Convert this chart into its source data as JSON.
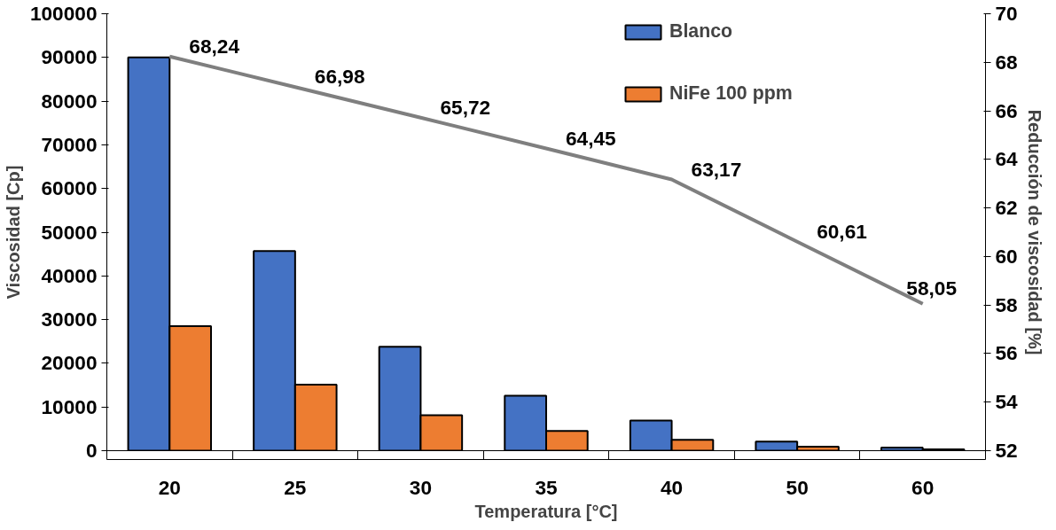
{
  "chart_data": {
    "type": "bar",
    "xlabel": "Temperatura [°C]",
    "ylabel": "Viscosidad [Cp]",
    "y2label": "Reducción de viscosidad [%]",
    "categories": [
      "20",
      "25",
      "30",
      "35",
      "40",
      "50",
      "60"
    ],
    "series": [
      {
        "name": "Blanco",
        "color": "#4472c4",
        "values": [
          90000,
          45700,
          23800,
          12600,
          6900,
          2100,
          700
        ]
      },
      {
        "name": "NiFe 100 ppm",
        "color": "#ed7d31",
        "values": [
          28500,
          15100,
          8100,
          4500,
          2500,
          900,
          300
        ]
      },
      {
        "type": "line",
        "axis": "y2",
        "color": "#7f7f7f",
        "values": [
          68.24,
          66.98,
          65.72,
          64.45,
          63.17,
          60.61,
          58.05
        ],
        "value_labels": [
          "68,24",
          "66,98",
          "65,72",
          "64,45",
          "63,17",
          "60,61",
          "58,05"
        ]
      }
    ],
    "ylim": [
      0,
      100000
    ],
    "yticks": [
      0,
      10000,
      20000,
      30000,
      40000,
      50000,
      60000,
      70000,
      80000,
      90000,
      100000
    ],
    "y2lim": [
      52,
      70
    ],
    "y2ticks": [
      52,
      54,
      56,
      58,
      60,
      62,
      64,
      66,
      68,
      70
    ],
    "grid": false,
    "legend": "top right",
    "marker": "none"
  }
}
